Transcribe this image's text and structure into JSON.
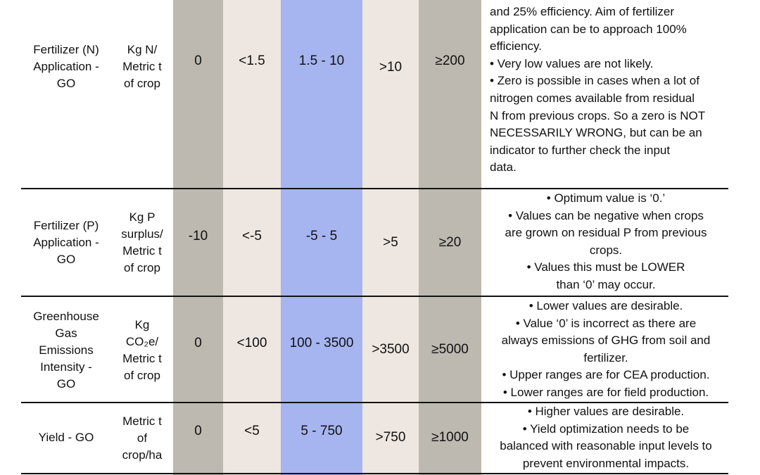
{
  "colors": {
    "gray": "#bdb9b0",
    "beige": "#eee6e0",
    "blue": "#a6b5f0"
  },
  "rows": [
    {
      "id": "fertilizer-n",
      "indicator": [
        "Fertilizer (N)",
        "Application -",
        "GO"
      ],
      "unit": [
        "Kg N/",
        "Metric t",
        "of crop"
      ],
      "v1": "0",
      "v2": "<1.5",
      "v3": "1.5 - 10",
      "v4": ">10",
      "v5": "≥200",
      "notes": [
        "and 25% efficiency. Aim of fertilizer",
        "application can be to approach 100%",
        "efficiency.",
        "• Very low values are not likely.",
        "• Zero is possible in cases when a lot of",
        "nitrogen comes available from residual",
        "N from previous crops. So a zero is NOT",
        "NECESSARILY WRONG, but can be an",
        "indicator to further check the input",
        "data."
      ]
    },
    {
      "id": "fertilizer-p",
      "indicator": [
        "Fertilizer (P)",
        "Application -",
        "GO"
      ],
      "unit": [
        "Kg P",
        "surplus/",
        "Metric t",
        "of crop"
      ],
      "v1": "-10",
      "v2": "<-5",
      "v3": "-5 - 5",
      "v4": ">5",
      "v5": "≥20",
      "notes": [
        "• Optimum value is ‘0.’",
        "• Values can be negative when crops",
        "are grown on residual P from previous",
        "crops.",
        "• Values this must be LOWER",
        "than ‘0’ may occur."
      ]
    },
    {
      "id": "ghg",
      "indicator": [
        "Greenhouse",
        "Gas",
        "Emissions",
        "Intensity -",
        "GO"
      ],
      "unit": [
        "Kg",
        "CO₂e/",
        "Metric t",
        "of crop"
      ],
      "v1": "0",
      "v2": "<100",
      "v3": "100 - 3500",
      "v4": ">3500",
      "v5": "≥5000",
      "notes": [
        "• Lower values are desirable.",
        "• Value ‘0’ is incorrect as there are",
        "always emissions of GHG from soil and",
        "fertilizer.",
        "• Upper ranges are for CEA production.",
        "• Lower ranges are for field production."
      ]
    },
    {
      "id": "yield",
      "indicator": [
        "Yield - GO"
      ],
      "unit": [
        "Metric t",
        "of",
        "crop/ha"
      ],
      "v1": "0",
      "v2": "<5",
      "v3": "5 - 750",
      "v4": ">750",
      "v5": "≥1000",
      "notes": [
        "• Higher values are desirable.",
        "• Yield optimization needs to be",
        "balanced with reasonable input levels to",
        "prevent environmental impacts."
      ]
    }
  ]
}
